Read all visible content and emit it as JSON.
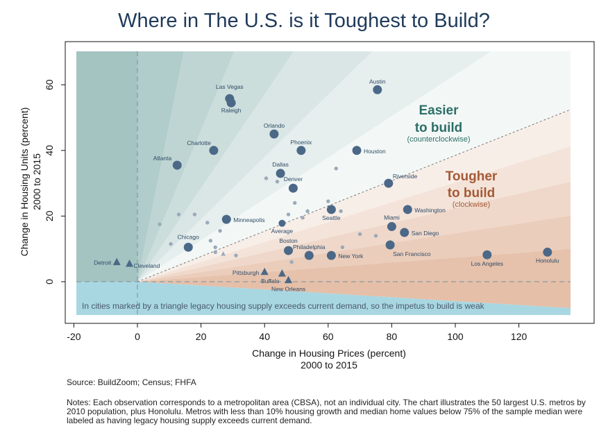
{
  "page": {
    "title": "Where in The U.S. is it Toughest to Build?",
    "source": "Source: BuildZoom; Census; FHFA",
    "notes": "Notes: Each observation corresponds to a metropolitan area (CBSA), not an individual city. The chart illustrates the 50 largest U.S. metros by 2010 population, plus Honolulu. Metros with less than 10% housing growth and median home values below 75% of the sample median were labeled as having legacy housing supply exceeds current demand."
  },
  "chart_data": {
    "type": "scatter",
    "title": "Where in The U.S. is it Toughest to Build?",
    "xlabel_line1": "Change in Housing Prices (percent)",
    "xlabel_line2": "2000 to 2015",
    "ylabel_line1": "Change in Housing Units (percent)",
    "ylabel_line2": "2000 to 2015",
    "xlim": [
      -20,
      137
    ],
    "ylim": [
      -10,
      70
    ],
    "x_ticks": [
      -20,
      0,
      20,
      40,
      60,
      80,
      100,
      120
    ],
    "x_tick_labels": [
      "-20",
      "0",
      "20",
      "40",
      "60",
      "80",
      "100",
      "120"
    ],
    "y_ticks": [
      0,
      20,
      40,
      60
    ],
    "y_tick_labels": [
      "0",
      "20",
      "40",
      "60"
    ],
    "grid": false,
    "reference_lines": {
      "x_zero_dashed": true,
      "y_zero_dashed": true,
      "diagonal_slope": 0.385
    },
    "colors": {
      "dot": "#4b6887",
      "dot_small": "#9aaab9",
      "cool": "#9fc1bf",
      "warm": "#e5bfa8",
      "legacy": "#a8d7e2"
    },
    "annotations": {
      "easier_line1": "Easier",
      "easier_line2": "to build",
      "easier_sub": "(counterclockwise)",
      "tougher_line1": "Tougher",
      "tougher_line2": "to build",
      "tougher_sub": "(clockwise)",
      "legacy_note": "In cities marked by a triangle legacy housing supply exceeds current demand, so the impetus to build is weak"
    },
    "points": [
      {
        "label": "Las Vegas",
        "x": 29,
        "y": 55.8,
        "shape": "circle",
        "size": "large",
        "label_dx": 0,
        "label_dy": -14,
        "anchor": "middle"
      },
      {
        "label": "Raleigh",
        "x": 29.5,
        "y": 54.5,
        "shape": "circle",
        "size": "large",
        "label_dx": 0,
        "label_dy": 14,
        "anchor": "middle"
      },
      {
        "label": "Austin",
        "x": 75.5,
        "y": 58.5,
        "shape": "circle",
        "size": "large",
        "label_dx": 0,
        "label_dy": -9,
        "anchor": "middle"
      },
      {
        "label": "Orlando",
        "x": 43,
        "y": 45,
        "shape": "circle",
        "size": "large",
        "label_dx": 0,
        "label_dy": -9,
        "anchor": "middle"
      },
      {
        "label": "Phoenix",
        "x": 51.5,
        "y": 40,
        "shape": "circle",
        "size": "large",
        "label_dx": 0,
        "label_dy": -9,
        "anchor": "middle"
      },
      {
        "label": "Charlotte",
        "x": 24,
        "y": 40,
        "shape": "circle",
        "size": "large",
        "label_dx": -4,
        "label_dy": -8,
        "anchor": "end"
      },
      {
        "label": "Houston",
        "x": 69,
        "y": 40,
        "shape": "circle",
        "size": "large",
        "label_dx": 10,
        "label_dy": 4,
        "anchor": "start"
      },
      {
        "label": "Atlanta",
        "x": 12.5,
        "y": 35.5,
        "shape": "circle",
        "size": "large",
        "label_dx": -8,
        "label_dy": -7,
        "anchor": "end"
      },
      {
        "label": "Dallas",
        "x": 45,
        "y": 33,
        "shape": "circle",
        "size": "large",
        "label_dx": 0,
        "label_dy": -10,
        "anchor": "middle"
      },
      {
        "label": "Riverside",
        "x": 79,
        "y": 30,
        "shape": "circle",
        "size": "large",
        "label_dx": 6,
        "label_dy": -7,
        "anchor": "start"
      },
      {
        "label": "Denver",
        "x": 49,
        "y": 28.5,
        "shape": "circle",
        "size": "large",
        "label_dx": 0,
        "label_dy": -10,
        "anchor": "middle"
      },
      {
        "label": "Seattle",
        "x": 61,
        "y": 22,
        "shape": "circle",
        "size": "large",
        "label_dx": 0,
        "label_dy": 15,
        "anchor": "middle"
      },
      {
        "label": "Washington",
        "x": 85,
        "y": 22,
        "shape": "circle",
        "size": "large",
        "label_dx": 10,
        "label_dy": 4,
        "anchor": "start"
      },
      {
        "label": "Minneapolis",
        "x": 28,
        "y": 19,
        "shape": "circle",
        "size": "large",
        "label_dx": 10,
        "label_dy": 4,
        "anchor": "start"
      },
      {
        "label": "Average",
        "x": 45.5,
        "y": 17.8,
        "shape": "circle",
        "size": "medium",
        "label_dx": 0,
        "label_dy": 14,
        "anchor": "middle"
      },
      {
        "label": "Miami",
        "x": 80,
        "y": 16.8,
        "shape": "circle",
        "size": "large",
        "label_dx": 0,
        "label_dy": -10,
        "anchor": "middle"
      },
      {
        "label": "San Diego",
        "x": 84,
        "y": 15,
        "shape": "circle",
        "size": "large",
        "label_dx": 10,
        "label_dy": 4,
        "anchor": "start"
      },
      {
        "label": "Chicago",
        "x": 16,
        "y": 10.5,
        "shape": "circle",
        "size": "large",
        "label_dx": 0,
        "label_dy": -12,
        "anchor": "middle"
      },
      {
        "label": "Boston",
        "x": 47.5,
        "y": 9.5,
        "shape": "circle",
        "size": "large",
        "label_dx": 0,
        "label_dy": -11,
        "anchor": "middle"
      },
      {
        "label": "Philadelphia",
        "x": 54,
        "y": 8,
        "shape": "circle",
        "size": "large",
        "label_dx": 0,
        "label_dy": -9,
        "anchor": "middle"
      },
      {
        "label": "New York",
        "x": 61,
        "y": 8,
        "shape": "circle",
        "size": "large",
        "label_dx": 10,
        "label_dy": 4,
        "anchor": "start"
      },
      {
        "label": "San Francisco",
        "x": 79.5,
        "y": 11.2,
        "shape": "circle",
        "size": "large",
        "label_dx": 4,
        "label_dy": 16,
        "anchor": "start"
      },
      {
        "label": "Los Angeles",
        "x": 110,
        "y": 8.2,
        "shape": "circle",
        "size": "large",
        "label_dx": 0,
        "label_dy": 16,
        "anchor": "middle"
      },
      {
        "label": "Honolulu",
        "x": 129,
        "y": 9,
        "shape": "circle",
        "size": "large",
        "label_dx": 0,
        "label_dy": 15,
        "anchor": "middle"
      },
      {
        "label": "Detroit",
        "x": -6.5,
        "y": 6,
        "shape": "triangle",
        "size": "large",
        "label_dx": -8,
        "label_dy": 4,
        "anchor": "end"
      },
      {
        "label": "Cleveland",
        "x": -2.5,
        "y": 5.5,
        "shape": "triangle",
        "size": "large",
        "label_dx": 6,
        "label_dy": 6,
        "anchor": "start"
      },
      {
        "label": "Pittsburgh",
        "x": 40,
        "y": 3,
        "shape": "triangle",
        "size": "large",
        "label_dx": -8,
        "label_dy": 4,
        "anchor": "end"
      },
      {
        "label": "Buffalo",
        "x": 45.5,
        "y": 2.5,
        "shape": "triangle",
        "size": "large",
        "label_dx": -4,
        "label_dy": 14,
        "anchor": "end"
      },
      {
        "label": "New Orleans",
        "x": 47.5,
        "y": 0.5,
        "shape": "triangle",
        "size": "large",
        "label_dx": 0,
        "label_dy": 16,
        "anchor": "middle"
      },
      {
        "label": "",
        "x": 7,
        "y": 17.5,
        "shape": "circle",
        "size": "small"
      },
      {
        "label": "",
        "x": 13,
        "y": 20.5,
        "shape": "circle",
        "size": "small"
      },
      {
        "label": "",
        "x": 18,
        "y": 20.5,
        "shape": "circle",
        "size": "small"
      },
      {
        "label": "",
        "x": 22,
        "y": 18,
        "shape": "circle",
        "size": "small"
      },
      {
        "label": "",
        "x": 26,
        "y": 15.5,
        "shape": "circle",
        "size": "small"
      },
      {
        "label": "",
        "x": 23,
        "y": 12.5,
        "shape": "circle",
        "size": "small"
      },
      {
        "label": "",
        "x": 24.5,
        "y": 10.5,
        "shape": "circle",
        "size": "small"
      },
      {
        "label": "",
        "x": 10.5,
        "y": 11.5,
        "shape": "circle",
        "size": "small"
      },
      {
        "label": "",
        "x": 24.5,
        "y": 9,
        "shape": "circle",
        "size": "small"
      },
      {
        "label": "",
        "x": 27,
        "y": 8.5,
        "shape": "triangle",
        "size": "small"
      },
      {
        "label": "",
        "x": 31,
        "y": 8,
        "shape": "circle",
        "size": "small"
      },
      {
        "label": "",
        "x": 40.5,
        "y": 31.5,
        "shape": "circle",
        "size": "small"
      },
      {
        "label": "",
        "x": 44,
        "y": 30.5,
        "shape": "circle",
        "size": "small"
      },
      {
        "label": "",
        "x": 49.5,
        "y": 24,
        "shape": "circle",
        "size": "small"
      },
      {
        "label": "",
        "x": 47.5,
        "y": 20.5,
        "shape": "circle",
        "size": "small"
      },
      {
        "label": "",
        "x": 53.5,
        "y": 21.5,
        "shape": "circle",
        "size": "small"
      },
      {
        "label": "",
        "x": 52,
        "y": 19.5,
        "shape": "circle",
        "size": "small"
      },
      {
        "label": "",
        "x": 62.5,
        "y": 34.5,
        "shape": "circle",
        "size": "small"
      },
      {
        "label": "",
        "x": 60,
        "y": 24.5,
        "shape": "circle",
        "size": "small"
      },
      {
        "label": "",
        "x": 64,
        "y": 21.5,
        "shape": "circle",
        "size": "small"
      },
      {
        "label": "",
        "x": 70,
        "y": 14.5,
        "shape": "circle",
        "size": "small"
      },
      {
        "label": "",
        "x": 75,
        "y": 14,
        "shape": "circle",
        "size": "small"
      },
      {
        "label": "",
        "x": 64.5,
        "y": 10.5,
        "shape": "circle",
        "size": "small"
      },
      {
        "label": "",
        "x": 48.5,
        "y": 6,
        "shape": "circle",
        "size": "small"
      }
    ]
  }
}
